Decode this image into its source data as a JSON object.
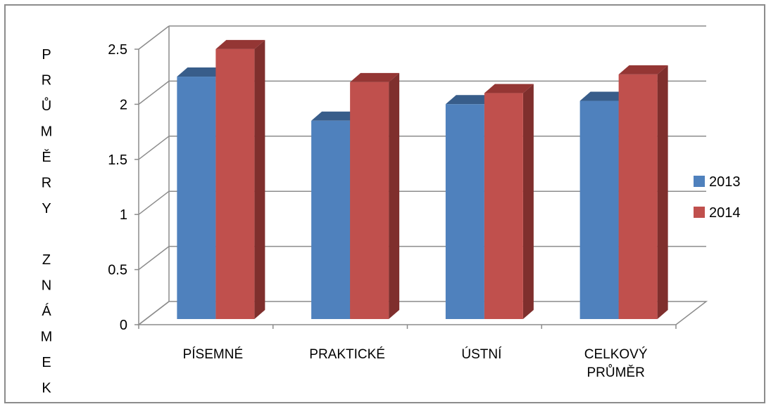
{
  "chart_data": {
    "type": "bar",
    "title": "",
    "ylabel": "PRŮMĚRY ZNÁMEK",
    "ylabel_lines": [
      "P",
      "R",
      "Ů",
      "M",
      "Ě",
      "R",
      "Y",
      "",
      "Z",
      "N",
      "Á",
      "M",
      "E",
      "K"
    ],
    "xlabel": "",
    "categories": [
      [
        "PÍSEMNÉ"
      ],
      [
        "PRAKTICKÉ"
      ],
      [
        "ÚSTNÍ"
      ],
      [
        "CELKOVÝ",
        "PRŮMĚR"
      ]
    ],
    "series": [
      {
        "name": "2013",
        "values": [
          2.2,
          1.8,
          1.95,
          1.98
        ],
        "color": "#4f81bd",
        "top_color": "#385d8a",
        "side_color": "#3a5f8c"
      },
      {
        "name": "2014",
        "values": [
          2.45,
          2.15,
          2.05,
          2.22
        ],
        "color": "#c0504d",
        "top_color": "#943634",
        "side_color": "#7f2f2d"
      }
    ],
    "ylim": [
      0,
      2.5
    ],
    "yticks": [
      "0",
      "0.5",
      "1",
      "1.5",
      "2",
      "2.5"
    ],
    "ytick_values": [
      0,
      0.5,
      1,
      1.5,
      2,
      2.5
    ],
    "grid": true,
    "legend_position": "right",
    "style": "3d-clustered-column"
  }
}
